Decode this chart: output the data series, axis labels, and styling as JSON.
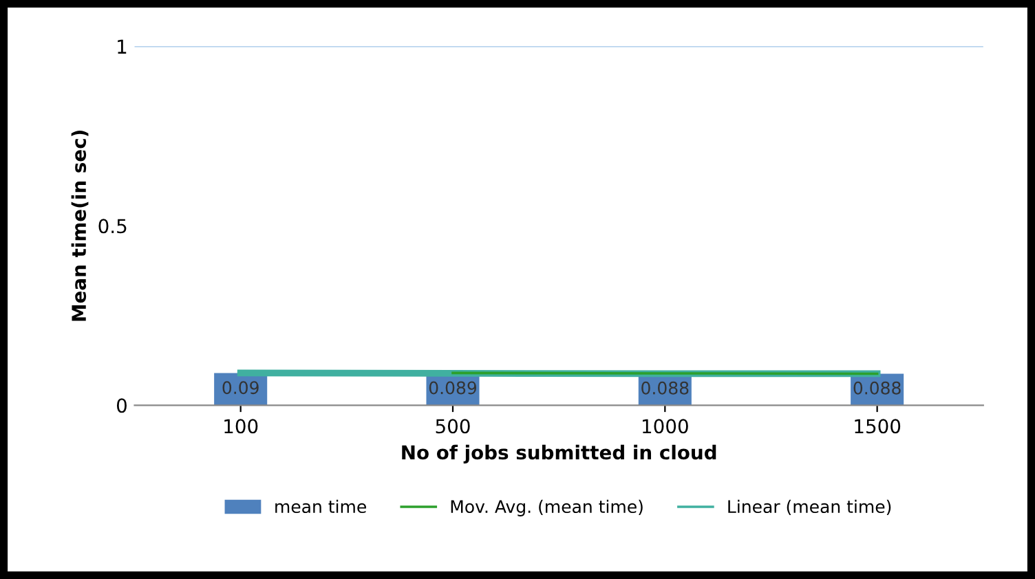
{
  "chart_data": {
    "type": "bar",
    "xlabel": "No of jobs submitted in cloud",
    "ylabel": "Mean time(in sec)",
    "categories": [
      "100",
      "500",
      "1000",
      "1500"
    ],
    "series": [
      {
        "name": "mean time",
        "color": "#4f81bd",
        "values": [
          0.09,
          0.089,
          0.088,
          0.088
        ],
        "data_labels": true
      },
      {
        "name": "Linear (mean time)",
        "type": "line",
        "color": "#40b0a0",
        "values": [
          0.09,
          0.089,
          0.088,
          0.088
        ]
      },
      {
        "name": "Mov. Avg. (mean time)",
        "type": "line",
        "color": "#2ca02c",
        "values": [
          null,
          0.09,
          0.089,
          0.088
        ]
      }
    ],
    "ylim": [
      0,
      1
    ],
    "yticks": [
      0,
      0.5,
      1
    ],
    "ref_lines": [
      {
        "axis": "y",
        "value": 1,
        "label": null,
        "color": "#9fc5e8"
      }
    ],
    "legend": "bottom"
  }
}
